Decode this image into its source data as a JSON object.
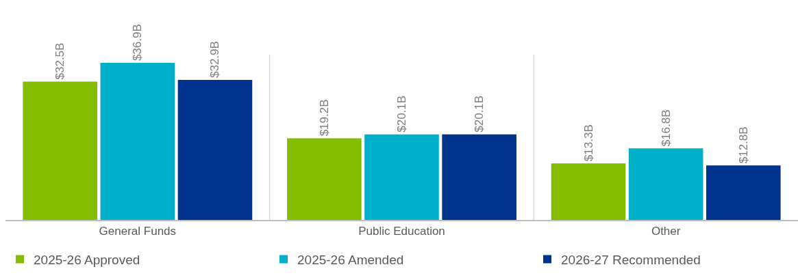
{
  "chart_data": {
    "type": "bar",
    "categories": [
      "General Funds",
      "Public Education",
      "Other"
    ],
    "series": [
      {
        "name": "2025-26 Approved",
        "color": "#84bd00",
        "values": [
          32.5,
          19.2,
          13.3
        ],
        "value_labels": [
          "$32.5B",
          "$19.2B",
          "$13.3B"
        ]
      },
      {
        "name": "2025-26 Amended",
        "color": "#00b0ca",
        "values": [
          36.9,
          20.1,
          16.8
        ],
        "value_labels": [
          "$36.9B",
          "$20.1B",
          "$16.8B"
        ]
      },
      {
        "name": "2026-27 Recommended",
        "color": "#00338d",
        "values": [
          32.9,
          20.1,
          12.8
        ],
        "value_labels": [
          "$32.9B",
          "$20.1B",
          "$12.8B"
        ]
      }
    ],
    "grid": "x",
    "legend": "bottom"
  }
}
